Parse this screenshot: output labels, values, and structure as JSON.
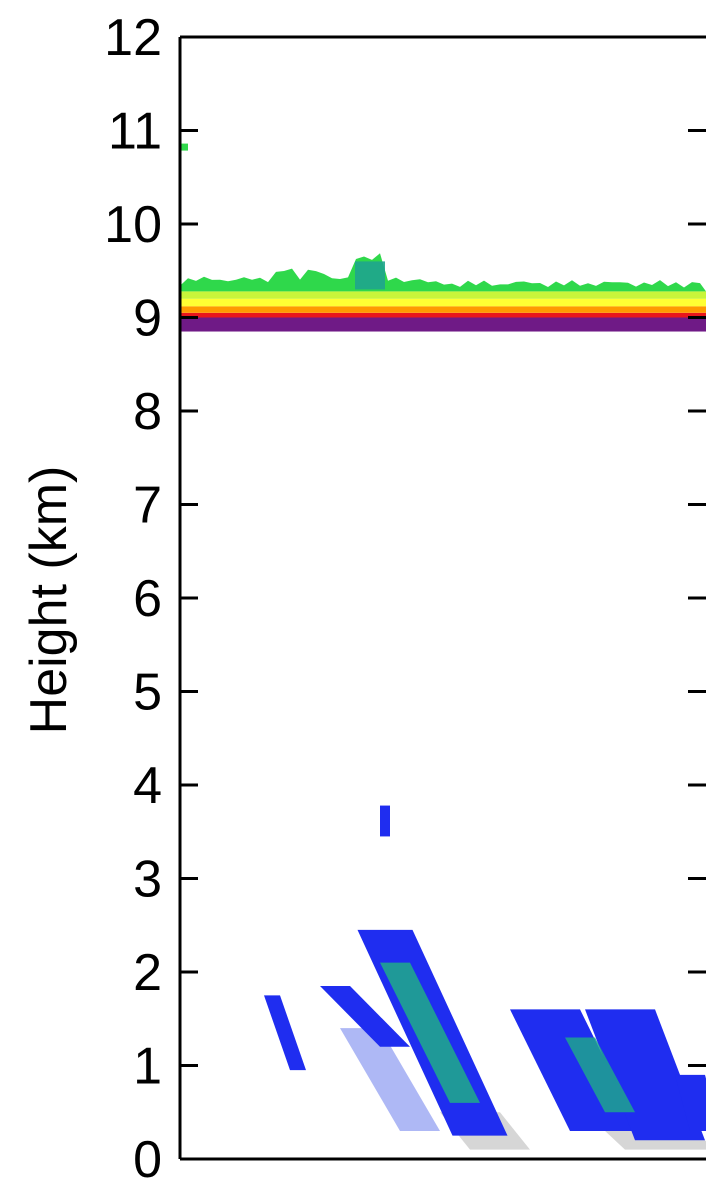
{
  "chart_data": {
    "type": "heatmap",
    "title": "",
    "xlabel": "",
    "ylabel": "Height (km)",
    "ylim": [
      0,
      12
    ],
    "yticks": [
      0,
      1,
      2,
      3,
      4,
      5,
      6,
      7,
      8,
      9,
      10,
      11,
      12
    ],
    "ytick_labels": [
      "0",
      "1",
      "2",
      "3",
      "4",
      "5",
      "6",
      "7",
      "8",
      "9",
      "10",
      "11",
      "12"
    ],
    "grid": false,
    "colors": {
      "purple": "#6f1a86",
      "red": "#e8161c",
      "orange": "#ff9a00",
      "yellow": "#ffff33",
      "yellow_green": "#c8f53a",
      "green": "#2fd84b",
      "teal": "#1fa58e",
      "blue": "#1f2df0",
      "light_blue": "#9aa6f2",
      "light_gray": "#d6d6d6"
    },
    "layers": [
      {
        "height_from": 8.85,
        "height_to": 9.0,
        "color": "purple"
      },
      {
        "height_from": 9.0,
        "height_to": 9.05,
        "color": "red"
      },
      {
        "height_from": 9.05,
        "height_to": 9.12,
        "color": "orange"
      },
      {
        "height_from": 9.12,
        "height_to": 9.2,
        "color": "yellow"
      },
      {
        "height_from": 9.2,
        "height_to": 9.28,
        "color": "yellow_green"
      }
    ]
  }
}
